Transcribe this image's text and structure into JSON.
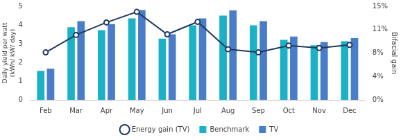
{
  "chart_data": {
    "type": "bar",
    "categories": [
      "Feb",
      "Mar",
      "Apr",
      "May",
      "Jun",
      "Jul",
      "Aug",
      "Sep",
      "Oct",
      "Nov",
      "Dec"
    ],
    "y_label": "Daily yield per watt  (kWh/ kW/ day)",
    "y2_label": "Bifacial gain",
    "ylim": [
      0,
      5
    ],
    "yticks": [
      0,
      1,
      2,
      3,
      4,
      5
    ],
    "y2lim": [
      0,
      15
    ],
    "y2ticks": [
      {
        "value": 0,
        "label": "0%"
      },
      {
        "value": 3.75,
        "label": "4%"
      },
      {
        "value": 7.5,
        "label": "8%"
      },
      {
        "value": 11.25,
        "label": "11%"
      },
      {
        "value": 15,
        "label": "15%"
      }
    ],
    "grid": false,
    "legend": "bottom",
    "series": [
      {
        "name": "Benchmark",
        "type": "bar",
        "color": "#1bb1c6",
        "values": [
          1.55,
          3.88,
          3.72,
          4.35,
          3.27,
          3.98,
          4.5,
          3.98,
          3.2,
          2.92,
          3.13
        ]
      },
      {
        "name": "TV",
        "type": "bar",
        "color": "#4a7dc9",
        "values": [
          1.67,
          4.2,
          4.05,
          4.8,
          3.5,
          4.35,
          4.78,
          4.2,
          3.38,
          3.08,
          3.3
        ]
      },
      {
        "name": "Energy gain (TV)",
        "type": "line",
        "axis": "y2",
        "color": "#1f3a5f",
        "marker": "circle",
        "values": [
          7.6,
          10.4,
          12.4,
          14.1,
          10.5,
          12.5,
          8.1,
          7.6,
          8.7,
          8.3,
          8.8
        ]
      }
    ]
  }
}
